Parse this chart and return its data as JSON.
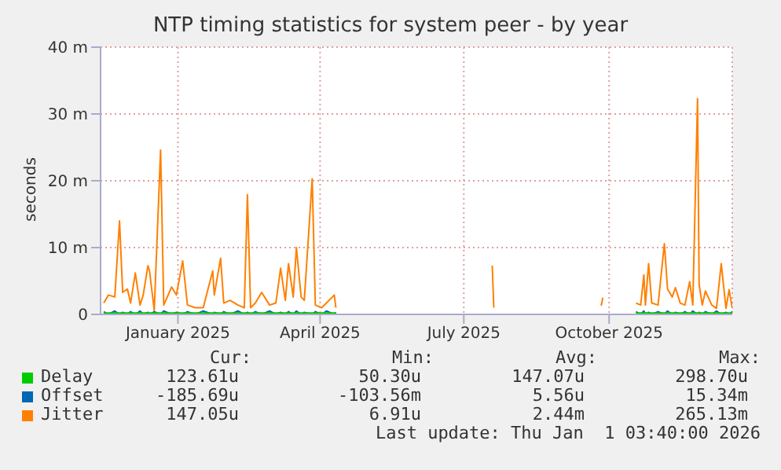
{
  "chart_data": {
    "type": "line",
    "title": "NTP timing statistics for system peer - by year",
    "ylabel": "seconds",
    "x": [
      "2024-11-29",
      "2024-12-02",
      "2024-12-06",
      "2024-12-09",
      "2024-12-11",
      "2024-12-14",
      "2024-12-16",
      "2024-12-19",
      "2024-12-22",
      "2024-12-24",
      "2024-12-27",
      "2024-12-28",
      "2024-12-31",
      "2025-01-04",
      "2025-01-06",
      "2025-01-11",
      "2025-01-14",
      "2025-01-18",
      "2025-01-21",
      "2025-01-26",
      "2025-01-31",
      "2025-02-06",
      "2025-02-07",
      "2025-02-11",
      "2025-02-13",
      "2025-02-17",
      "2025-02-22",
      "2025-02-26",
      "2025-02-28",
      "2025-03-02",
      "2025-03-05",
      "2025-03-09",
      "2025-03-14",
      "2025-03-18",
      "2025-03-21",
      "2025-03-24",
      "2025-03-26",
      "2025-03-29",
      "2025-03-31",
      "2025-04-03",
      "2025-04-05",
      "2025-04-10",
      "2025-04-12",
      "2025-04-16",
      "2025-04-19",
      "2025-04-24",
      "2025-04-25",
      "2025-04-26",
      "2025-08-01",
      "2025-08-02",
      "2025-08-03",
      "2025-08-04",
      "2025-10-09",
      "2025-10-10",
      "2025-10-11",
      "2025-10-31",
      "2025-11-01",
      "2025-11-04",
      "2025-11-06",
      "2025-11-07",
      "2025-11-09",
      "2025-11-11",
      "2025-11-15",
      "2025-11-19",
      "2025-11-21",
      "2025-11-24",
      "2025-11-26",
      "2025-11-29",
      "2025-12-02",
      "2025-12-05",
      "2025-12-07",
      "2025-12-10",
      "2025-12-11",
      "2025-12-13",
      "2025-12-15",
      "2025-12-19",
      "2025-12-22",
      "2025-12-25",
      "2025-12-28",
      "2025-12-30",
      "2026-01-01"
    ],
    "series": [
      {
        "name": "Delay",
        "color": "#00cc00",
        "values": [
          0.2,
          0.2,
          0.2,
          0.2,
          0.2,
          0.2,
          0.2,
          0.2,
          0.2,
          0.2,
          0.2,
          0.2,
          0.2,
          0.2,
          0.2,
          0.2,
          0.2,
          0.2,
          0.2,
          0.2,
          0.2,
          0.2,
          0.2,
          0.2,
          0.2,
          0.2,
          0.2,
          0.2,
          0.2,
          0.2,
          0.2,
          0.2,
          0.2,
          0.2,
          0.2,
          0.2,
          0.2,
          0.2,
          0.2,
          0.2,
          0.2,
          0.2,
          0.2,
          0.2,
          0.2,
          0.2,
          0.2,
          null,
          null,
          null,
          null,
          null,
          null,
          null,
          null,
          null,
          0.2,
          0.2,
          0.2,
          0.2,
          0.2,
          0.2,
          0.2,
          0.2,
          0.2,
          0.2,
          0.2,
          0.2,
          0.2,
          0.2,
          0.2,
          0.2,
          0.2,
          0.2,
          0.2,
          0.2,
          0.2,
          0.2,
          0.2,
          0.2,
          0.2
        ]
      },
      {
        "name": "Offset",
        "color": "#0066b3",
        "values": [
          0.4,
          0,
          0.5,
          0,
          0.3,
          0,
          0.4,
          0,
          0.5,
          0,
          0.3,
          0,
          0.4,
          0,
          0.5,
          0,
          0.3,
          0,
          0.4,
          0,
          0.5,
          0,
          0.3,
          0,
          0.4,
          0,
          0.5,
          0,
          0.3,
          0,
          0.4,
          0,
          0.5,
          0,
          0.3,
          0,
          0.4,
          0,
          0.5,
          0,
          0.3,
          0,
          0.4,
          0,
          0.5,
          0,
          0.3,
          null,
          null,
          null,
          null,
          null,
          null,
          null,
          null,
          null,
          0.4,
          0,
          0.5,
          0,
          0.3,
          0,
          0.4,
          0,
          0.5,
          0,
          0.3,
          0,
          0.4,
          0,
          0.5,
          0,
          0.3,
          0,
          0.4,
          0,
          0.5,
          0,
          0.3,
          0,
          0.4
        ]
      },
      {
        "name": "Jitter",
        "color": "#ff8000",
        "values": [
          1.7,
          2.9,
          2.6,
          14,
          3.3,
          3.8,
          1.7,
          6.2,
          1.4,
          2.9,
          7.3,
          6.5,
          0.6,
          24.6,
          1.4,
          4.1,
          2.9,
          8,
          1.4,
          1,
          1,
          6.5,
          2.9,
          8.4,
          1.7,
          2.1,
          1.4,
          1,
          17.9,
          1,
          1.7,
          3.3,
          1.4,
          1.7,
          6.9,
          2.1,
          7.6,
          2.6,
          10,
          2.6,
          2.1,
          20.3,
          1.4,
          1,
          1.7,
          2.9,
          1,
          null,
          null,
          7.3,
          1,
          null,
          null,
          1.3,
          2.5,
          null,
          1.7,
          1.4,
          5.9,
          1.4,
          7.6,
          1.7,
          1.4,
          10.6,
          3.8,
          2.6,
          4,
          1.7,
          1.4,
          4.9,
          1.4,
          32.3,
          4.5,
          1.4,
          3.5,
          1.4,
          0.9,
          7.6,
          0.9,
          3.7,
          0.9
        ]
      }
    ],
    "xlim": [
      "2024-11-27",
      "2026-01-01"
    ],
    "xticks": [
      {
        "value": "2025-01-15",
        "label": "January 2025"
      },
      {
        "value": "2025-04-15",
        "label": "April 2025"
      },
      {
        "value": "2025-07-15",
        "label": "July 2025"
      },
      {
        "value": "2025-10-15",
        "label": "October 2025"
      }
    ],
    "ylim": [
      0,
      40
    ],
    "yticks": [
      0,
      {
        "value": 10,
        "label": "10 m"
      },
      {
        "value": 20,
        "label": "20 m"
      },
      {
        "value": 30,
        "label": "30 m"
      },
      {
        "value": 40,
        "label": "40 m"
      }
    ],
    "grid": true,
    "legend": "bottom",
    "marker": "none",
    "line_style": "solid",
    "annotations": [
      "Cur:",
      "Min:",
      "Avg:",
      "Max:",
      "123.61u",
      "50.30u",
      "147.07u",
      "298.70u",
      "-185.69u",
      "-103.56m",
      "5.56u",
      "15.34m",
      "147.05u",
      "6.91u",
      "2.44m",
      "265.13m",
      "Last update: Thu Jan  1 03:40:00 2026"
    ]
  }
}
